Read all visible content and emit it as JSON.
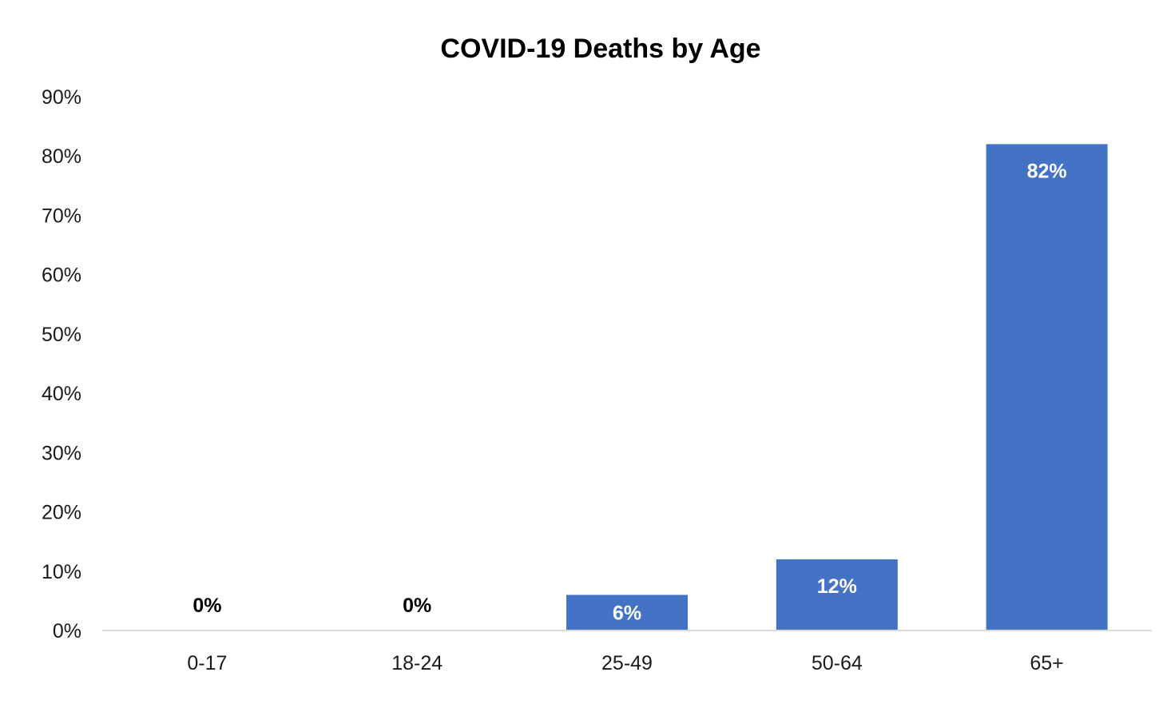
{
  "chart_data": {
    "type": "bar",
    "title": "COVID-19 Deaths by Age",
    "xlabel": "",
    "ylabel": "",
    "categories": [
      "0-17",
      "18-24",
      "25-49",
      "50-64",
      "65+"
    ],
    "values": [
      0,
      0,
      6,
      12,
      82
    ],
    "data_labels": [
      "0%",
      "0%",
      "6%",
      "12%",
      "82%"
    ],
    "y_ticks": [
      0,
      10,
      20,
      30,
      40,
      50,
      60,
      70,
      80,
      90
    ],
    "y_tick_labels": [
      "0%",
      "10%",
      "20%",
      "30%",
      "40%",
      "50%",
      "60%",
      "70%",
      "80%",
      "90%"
    ],
    "ylim": [
      0,
      90
    ],
    "grid": false,
    "legend": "none",
    "colors": {
      "bar": "#4472C4",
      "label_inside": "#FFFFFF",
      "label_outside": "#000000",
      "axis": "#D9D9D9"
    }
  }
}
